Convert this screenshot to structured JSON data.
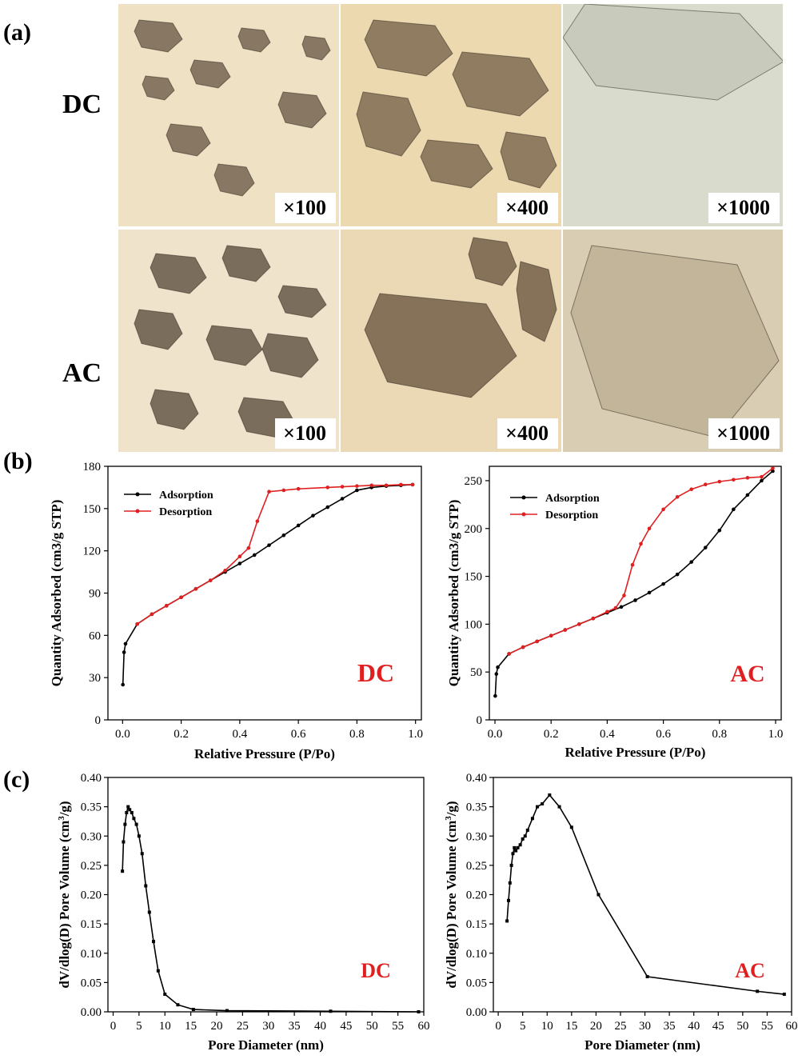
{
  "panels": {
    "a": "(a)",
    "b": "(b)",
    "c": "(c)"
  },
  "micrographs": {
    "rows": [
      {
        "label": "DC",
        "images": [
          {
            "mag": "×100",
            "tone": "#efe1c3",
            "particle": "#5b4a3a"
          },
          {
            "mag": "×400",
            "tone": "#ecd9b0",
            "particle": "#6a5540"
          },
          {
            "mag": "×1000",
            "tone": "#d9dccd",
            "particle": "#a9ad9c"
          }
        ]
      },
      {
        "label": "AC",
        "images": [
          {
            "mag": "×100",
            "tone": "#efe3cb",
            "particle": "#4a3a2c"
          },
          {
            "mag": "×400",
            "tone": "#ebd9b6",
            "particle": "#5a4632"
          },
          {
            "mag": "×1000",
            "tone": "#d9cdb3",
            "particle": "#9a8a6c"
          }
        ]
      }
    ]
  },
  "chart_data": [
    {
      "type": "line",
      "title": "",
      "annotation": "DC",
      "xlabel": "Relative Pressure (P/Po)",
      "ylabel": "Quantity Adsorbed (cm3/g STP)",
      "xlim": [
        -0.05,
        1.02
      ],
      "ylim": [
        0,
        180
      ],
      "xticks": [
        "0.0",
        "0.2",
        "0.4",
        "0.6",
        "0.8",
        "1.0"
      ],
      "xtick_values": [
        0,
        0.2,
        0.4,
        0.6,
        0.8,
        1.0
      ],
      "yticks": [
        "0",
        "30",
        "60",
        "90",
        "120",
        "150",
        "180"
      ],
      "ytick_values": [
        0,
        30,
        60,
        90,
        120,
        150,
        180
      ],
      "legend": "top-left",
      "series": [
        {
          "name": "Adsorption",
          "color": "#000000",
          "x": [
            0.001,
            0.005,
            0.01,
            0.05,
            0.1,
            0.15,
            0.2,
            0.25,
            0.3,
            0.35,
            0.4,
            0.45,
            0.5,
            0.55,
            0.6,
            0.65,
            0.7,
            0.75,
            0.8,
            0.85,
            0.9,
            0.95,
            0.99
          ],
          "y": [
            25,
            48,
            54,
            68,
            75,
            81,
            87,
            93,
            99,
            105,
            111,
            117,
            124,
            131,
            138,
            145,
            151,
            157,
            163,
            165,
            166,
            166.5,
            167
          ]
        },
        {
          "name": "Desorption",
          "color": "#e02020",
          "x": [
            0.99,
            0.95,
            0.9,
            0.85,
            0.8,
            0.75,
            0.7,
            0.6,
            0.55,
            0.5,
            0.46,
            0.43,
            0.4,
            0.35,
            0.3,
            0.25,
            0.2,
            0.15,
            0.1,
            0.05
          ],
          "y": [
            167,
            167,
            166.5,
            166.5,
            166,
            165.5,
            165,
            164,
            163,
            162,
            141,
            122,
            116,
            106,
            99,
            93,
            87,
            81,
            75,
            68
          ]
        }
      ]
    },
    {
      "type": "line",
      "title": "",
      "annotation": "AC",
      "xlabel": "Relative Pressure (P/Po)",
      "ylabel": "Quantity Adsorbed (cm3/g STP)",
      "xlim": [
        -0.02,
        1.02
      ],
      "ylim": [
        0,
        265
      ],
      "xticks": [
        "0.0",
        "0.2",
        "0.4",
        "0.6",
        "0.8",
        "1.0"
      ],
      "xtick_values": [
        0,
        0.2,
        0.4,
        0.6,
        0.8,
        1.0
      ],
      "yticks": [
        "0",
        "50",
        "100",
        "150",
        "200",
        "250"
      ],
      "ytick_values": [
        0,
        50,
        100,
        150,
        200,
        250
      ],
      "legend": "top-left",
      "series": [
        {
          "name": "Adsorption",
          "color": "#000000",
          "x": [
            0.001,
            0.005,
            0.01,
            0.05,
            0.1,
            0.15,
            0.2,
            0.25,
            0.3,
            0.35,
            0.4,
            0.45,
            0.5,
            0.55,
            0.6,
            0.65,
            0.7,
            0.75,
            0.8,
            0.85,
            0.9,
            0.95,
            0.99
          ],
          "y": [
            25,
            48,
            55,
            69,
            76,
            82,
            88,
            94,
            100,
            106,
            112,
            118,
            125,
            133,
            142,
            152,
            165,
            180,
            198,
            220,
            235,
            250,
            260
          ]
        },
        {
          "name": "Desorption",
          "color": "#e02020",
          "x": [
            0.99,
            0.95,
            0.9,
            0.85,
            0.8,
            0.75,
            0.7,
            0.65,
            0.6,
            0.55,
            0.52,
            0.49,
            0.46,
            0.43,
            0.4,
            0.35,
            0.3,
            0.25,
            0.2,
            0.15,
            0.1,
            0.05
          ],
          "y": [
            263,
            254,
            253,
            251,
            249,
            246,
            241,
            233,
            220,
            200,
            184,
            162,
            130,
            117,
            113,
            106,
            100,
            94,
            88,
            82,
            76,
            69
          ]
        }
      ]
    },
    {
      "type": "line",
      "title": "",
      "annotation": "DC",
      "xlabel": "Pore Diameter (nm)",
      "ylabel_parts": [
        "dV/dlog(D) Pore Volume (cm",
        "3",
        "/g)"
      ],
      "xlim": [
        -1,
        60
      ],
      "ylim": [
        0,
        0.4
      ],
      "xticks": [
        "0",
        "5",
        "10",
        "15",
        "20",
        "25",
        "30",
        "35",
        "40",
        "45",
        "50",
        "55",
        "60"
      ],
      "xtick_values": [
        0,
        5,
        10,
        15,
        20,
        25,
        30,
        35,
        40,
        45,
        50,
        55,
        60
      ],
      "yticks": [
        "0.00",
        "0.05",
        "0.10",
        "0.15",
        "0.20",
        "0.25",
        "0.30",
        "0.35",
        "0.40"
      ],
      "ytick_values": [
        0,
        0.05,
        0.1,
        0.15,
        0.2,
        0.25,
        0.3,
        0.35,
        0.4
      ],
      "series": [
        {
          "name": "",
          "color": "#000000",
          "x": [
            1.8,
            2.0,
            2.3,
            2.6,
            2.9,
            3.2,
            3.6,
            4.0,
            4.5,
            5.0,
            5.6,
            6.3,
            7.0,
            7.8,
            8.7,
            10.0,
            12.5,
            15.5,
            22.0,
            42.0,
            59.0
          ],
          "y": [
            0.24,
            0.29,
            0.32,
            0.34,
            0.35,
            0.345,
            0.34,
            0.33,
            0.32,
            0.3,
            0.27,
            0.215,
            0.17,
            0.12,
            0.07,
            0.03,
            0.012,
            0.004,
            0.002,
            0.001,
            0.0
          ]
        }
      ]
    },
    {
      "type": "line",
      "title": "",
      "annotation": "AC",
      "xlabel": "Pore Diameter (nm)",
      "ylabel_parts": [
        "dV/dlog(D) Pore Volume (cm",
        "3",
        "/g)"
      ],
      "xlim": [
        -1,
        60
      ],
      "ylim": [
        0,
        0.4
      ],
      "xticks": [
        "0",
        "5",
        "10",
        "15",
        "20",
        "25",
        "30",
        "35",
        "40",
        "45",
        "50",
        "55",
        "60"
      ],
      "xtick_values": [
        0,
        5,
        10,
        15,
        20,
        25,
        30,
        35,
        40,
        45,
        50,
        55,
        60
      ],
      "yticks": [
        "0.00",
        "0.05",
        "0.10",
        "0.15",
        "0.20",
        "0.25",
        "0.30",
        "0.35",
        "0.40"
      ],
      "ytick_values": [
        0,
        0.05,
        0.1,
        0.15,
        0.2,
        0.25,
        0.3,
        0.35,
        0.4
      ],
      "series": [
        {
          "name": "",
          "color": "#000000",
          "x": [
            1.8,
            2.1,
            2.4,
            2.7,
            3.0,
            3.3,
            3.6,
            4.0,
            4.5,
            5.0,
            5.5,
            6.0,
            7.0,
            8.0,
            9.0,
            10.5,
            12.5,
            15.0,
            20.5,
            30.5,
            53.0,
            58.5
          ],
          "y": [
            0.155,
            0.19,
            0.22,
            0.25,
            0.27,
            0.28,
            0.275,
            0.28,
            0.285,
            0.295,
            0.3,
            0.31,
            0.33,
            0.35,
            0.355,
            0.37,
            0.35,
            0.315,
            0.2,
            0.06,
            0.035,
            0.03
          ]
        }
      ]
    }
  ]
}
